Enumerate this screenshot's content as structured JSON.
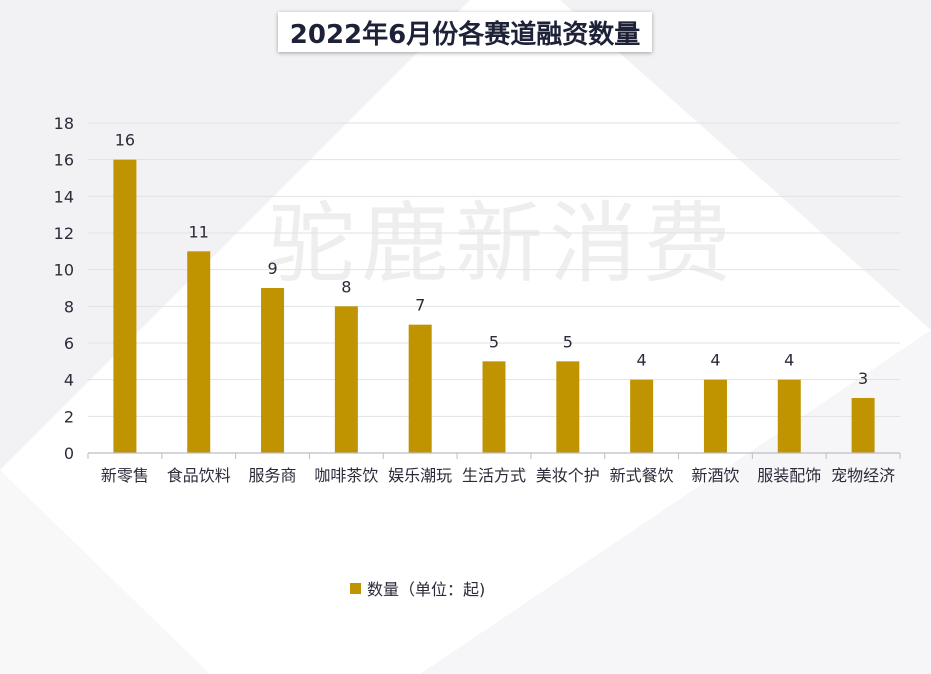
{
  "chart_data": {
    "type": "bar",
    "title": "2022年6月份各赛道融资数量",
    "categories": [
      "新零售",
      "食品饮料",
      "服务商",
      "咖啡茶饮",
      "娱乐潮玩",
      "生活方式",
      "美妆个护",
      "新式餐饮",
      "新酒饮",
      "服装配饰",
      "宠物经济"
    ],
    "series": [
      {
        "name": "数量（单位：起)",
        "values": [
          16,
          11,
          9,
          8,
          7,
          5,
          5,
          4,
          4,
          4,
          3
        ]
      }
    ],
    "ylim": [
      0,
      18
    ],
    "yticks": [
      0,
      2,
      4,
      6,
      8,
      10,
      12,
      14,
      16,
      18
    ],
    "data_labels": true,
    "grid": true,
    "legend_position": "bottom",
    "bar_color": "#c09300"
  },
  "watermark": "驼鹿新消费"
}
